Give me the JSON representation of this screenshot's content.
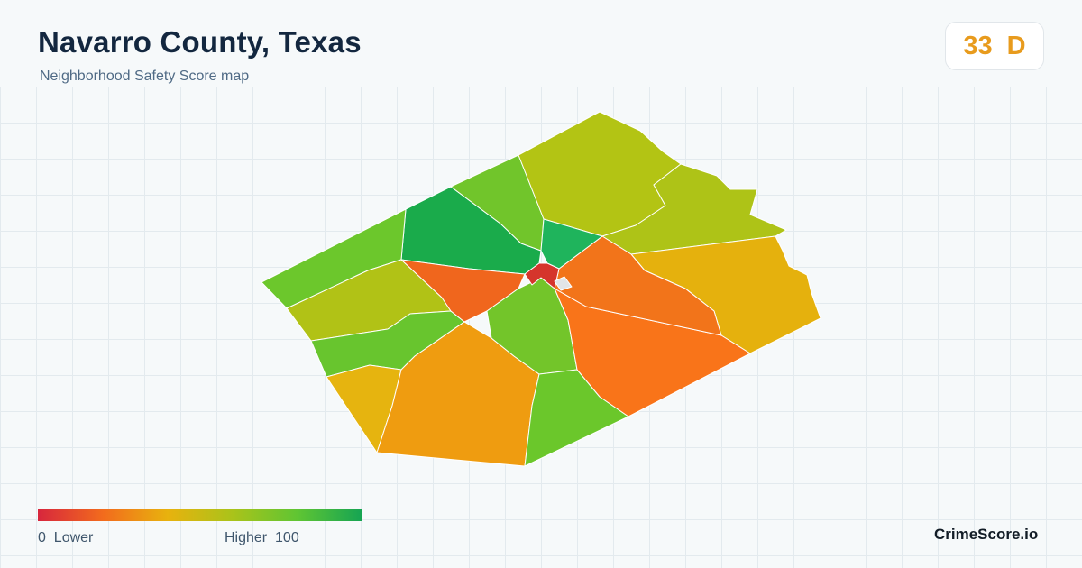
{
  "header": {
    "title": "Navarro County, Texas",
    "subtitle": "Neighborhood Safety Score map"
  },
  "score": {
    "value": "33",
    "grade": "D",
    "color": "#e89b1d"
  },
  "legend": {
    "min": "0",
    "min_label": "Lower",
    "max_label": "Higher",
    "max": "100",
    "gradient_colors": [
      "#d7263d",
      "#f26b1d",
      "#e8b20e",
      "#aac31a",
      "#5fc533",
      "#15a453"
    ]
  },
  "brand": "CrimeScore.io",
  "map": {
    "regions": [
      {
        "name": "northwest-ridge",
        "color": "#1aab4b"
      },
      {
        "name": "west-corridor",
        "color": "#6cc72c"
      },
      {
        "name": "north-central",
        "color": "#71c52b"
      },
      {
        "name": "northeast",
        "color": "#b3c414"
      },
      {
        "name": "east-central-north",
        "color": "#aec317"
      },
      {
        "name": "far-east",
        "color": "#e5b10d"
      },
      {
        "name": "west-middle",
        "color": "#b1c216"
      },
      {
        "name": "southwest-band",
        "color": "#68c52e"
      },
      {
        "name": "southwest-corner",
        "color": "#e6b40f"
      },
      {
        "name": "south-west-central",
        "color": "#ef9c10"
      },
      {
        "name": "central-west-orange",
        "color": "#f0661d"
      },
      {
        "name": "central-south-green",
        "color": "#73c52a"
      },
      {
        "name": "south-central-green",
        "color": "#6bc72b"
      },
      {
        "name": "southeast-large",
        "color": "#f97419"
      },
      {
        "name": "east-wedge",
        "color": "#f2741a"
      },
      {
        "name": "city-north",
        "color": "#1fb45c"
      },
      {
        "name": "city-core",
        "color": "#d5352c"
      }
    ]
  }
}
